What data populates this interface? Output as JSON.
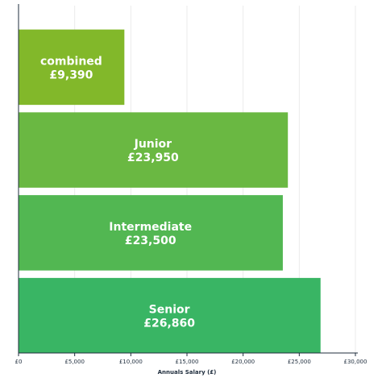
{
  "chart_data": {
    "type": "bar",
    "orientation": "horizontal",
    "categories": [
      "combined",
      "Junior",
      "Intermediate",
      "Senior"
    ],
    "value_labels": [
      "£9,390",
      "£23,950",
      "£23,500",
      "£26,860"
    ],
    "values": [
      9390,
      23950,
      23500,
      26860
    ],
    "bar_colors": [
      "#82b82a",
      "#6ab842",
      "#52b752",
      "#39b564"
    ],
    "xlabel": "Annuals Salary (£)",
    "xlim": [
      0,
      30000
    ],
    "xticks": [
      0,
      5000,
      10000,
      15000,
      20000,
      25000,
      30000
    ],
    "xtick_labels": [
      "£0",
      "£5,000",
      "£10,000",
      "£15,000",
      "£20,000",
      "£25,000",
      "£30,000"
    ],
    "grid": "vertical",
    "legend": "none"
  }
}
